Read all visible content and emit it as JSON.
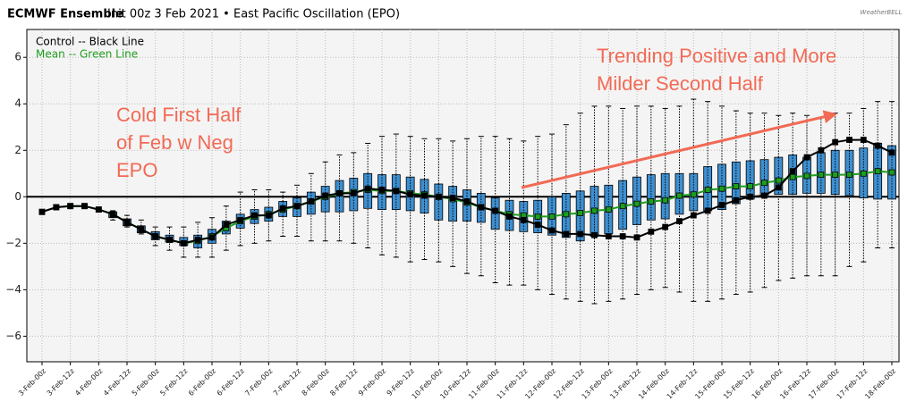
{
  "chart_data": {
    "type": "ensemble_box",
    "title": "ECMWF Ensemble",
    "subtitle": "Init 00z 3 Feb 2021 • East Pacific Oscillation (EPO)",
    "logo": "WeatherBELL",
    "annotations": [
      {
        "lines": [
          "Cold First Half",
          "of Feb w Neg",
          "EPO"
        ],
        "color": "#f26a55"
      },
      {
        "lines": [
          "Trending Positive and More",
          "Milder Second Half"
        ],
        "color": "#f26a55"
      }
    ],
    "categories": [
      "3-Feb-00z",
      null,
      "3-Feb-12z",
      null,
      "4-Feb-00z",
      null,
      "4-Feb-12z",
      null,
      "5-Feb-00z",
      null,
      "5-Feb-12z",
      null,
      "6-Feb-00z",
      null,
      "6-Feb-12z",
      null,
      "7-Feb-00z",
      null,
      "7-Feb-12z",
      null,
      "8-Feb-00z",
      null,
      "8-Feb-12z",
      null,
      "9-Feb-00z",
      null,
      "9-Feb-12z",
      null,
      "10-Feb-00z",
      null,
      "10-Feb-12z",
      null,
      "11-Feb-00z",
      null,
      "11-Feb-12z",
      null,
      "12-Feb-00z",
      null,
      "12-Feb-12z",
      null,
      "13-Feb-00z",
      null,
      "13-Feb-12z",
      null,
      "14-Feb-00z",
      null,
      "14-Feb-12z",
      null,
      "15-Feb-00z",
      null,
      "15-Feb-12z",
      null,
      "16-Feb-00z",
      null,
      "16-Feb-12z",
      null,
      "17-Feb-00z",
      null,
      "17-Feb-12z",
      null,
      "18-Feb-00z"
    ],
    "series": [
      {
        "name": "Control -- Black Line",
        "color": "#000000",
        "values": [
          -0.65,
          -0.45,
          -0.4,
          -0.4,
          -0.55,
          -0.75,
          -1.1,
          -1.4,
          -1.7,
          -1.85,
          -2.0,
          -1.85,
          -1.75,
          -1.2,
          -1.0,
          -0.8,
          -0.8,
          -0.5,
          -0.4,
          -0.2,
          0.05,
          0.15,
          0.15,
          0.35,
          0.3,
          0.25,
          0.1,
          0.05,
          0.0,
          -0.05,
          -0.2,
          -0.45,
          -0.6,
          -0.85,
          -1.0,
          -1.2,
          -1.45,
          -1.6,
          -1.6,
          -1.65,
          -1.7,
          -1.7,
          -1.75,
          -1.5,
          -1.3,
          -1.05,
          -0.8,
          -0.6,
          -0.35,
          -0.15,
          0.0,
          0.05,
          0.4,
          1.1,
          1.7,
          2.0,
          2.35,
          2.45,
          2.45,
          2.2,
          1.9
        ]
      },
      {
        "name": "Mean -- Green Line",
        "color": "#1f9e1f",
        "values": [
          -0.65,
          -0.45,
          -0.4,
          -0.4,
          -0.55,
          -0.75,
          -1.1,
          -1.4,
          -1.7,
          -1.85,
          -2.0,
          -1.9,
          -1.7,
          -1.35,
          -1.05,
          -0.85,
          -0.75,
          -0.55,
          -0.4,
          -0.2,
          0.0,
          0.15,
          0.2,
          0.3,
          0.25,
          0.25,
          0.15,
          0.1,
          0.0,
          -0.1,
          -0.25,
          -0.45,
          -0.6,
          -0.75,
          -0.8,
          -0.85,
          -0.85,
          -0.75,
          -0.7,
          -0.6,
          -0.55,
          -0.4,
          -0.3,
          -0.2,
          -0.15,
          0.05,
          0.1,
          0.3,
          0.35,
          0.45,
          0.45,
          0.6,
          0.7,
          0.85,
          0.9,
          0.95,
          0.95,
          0.95,
          1.0,
          1.1,
          1.05
        ]
      }
    ],
    "boxes": {
      "color": "#3d8fd1",
      "q1": [
        null,
        null,
        null,
        null,
        null,
        -0.9,
        -1.25,
        -1.55,
        -1.85,
        -1.95,
        -2.1,
        -2.2,
        -2.0,
        -1.6,
        -1.35,
        -1.15,
        -1.05,
        -0.85,
        -0.85,
        -0.75,
        -0.65,
        -0.65,
        -0.6,
        -0.5,
        -0.55,
        -0.55,
        -0.6,
        -0.7,
        -1.0,
        -1.05,
        -1.05,
        -1.1,
        -1.4,
        -1.45,
        -1.5,
        -1.55,
        -1.65,
        -1.75,
        -1.9,
        -1.7,
        -1.6,
        -1.4,
        -1.2,
        -1.0,
        -0.95,
        -0.75,
        -0.6,
        -0.6,
        -0.55,
        -0.3,
        -0.1,
        0.0,
        0.1,
        0.1,
        0.15,
        0.15,
        0.1,
        0.05,
        -0.05,
        -0.1,
        -0.1
      ],
      "q3": [
        null,
        null,
        null,
        null,
        null,
        -0.65,
        -0.95,
        -1.25,
        -1.5,
        -1.65,
        -1.75,
        -1.65,
        -1.4,
        -1.05,
        -0.75,
        -0.55,
        -0.45,
        -0.2,
        -0.05,
        0.2,
        0.45,
        0.7,
        0.8,
        1.0,
        0.95,
        0.95,
        0.85,
        0.75,
        0.55,
        0.45,
        0.3,
        0.15,
        -0.05,
        -0.15,
        -0.2,
        -0.15,
        0.0,
        0.15,
        0.25,
        0.45,
        0.5,
        0.7,
        0.85,
        0.95,
        1.0,
        1.0,
        1.0,
        1.3,
        1.4,
        1.5,
        1.55,
        1.6,
        1.7,
        1.8,
        1.7,
        1.9,
        2.0,
        2.0,
        2.1,
        2.3,
        2.2
      ],
      "min": [
        null,
        null,
        null,
        null,
        null,
        -1.0,
        -1.3,
        -1.6,
        -2.1,
        -2.3,
        -2.6,
        -2.6,
        -2.6,
        -2.3,
        -2.1,
        -2.0,
        -1.9,
        -1.7,
        -1.7,
        -1.9,
        -1.9,
        -1.9,
        -2.0,
        -2.2,
        -2.5,
        -2.6,
        -2.8,
        -2.7,
        -2.8,
        -3.0,
        -3.3,
        -3.4,
        -3.7,
        -3.8,
        -3.8,
        -4.0,
        -4.2,
        -4.4,
        -4.5,
        -4.6,
        -4.5,
        -4.4,
        -4.2,
        -4.0,
        -3.9,
        -4.1,
        -4.5,
        -4.5,
        -4.4,
        -4.2,
        -4.1,
        -3.9,
        -3.6,
        -3.5,
        -3.4,
        -3.4,
        -3.4,
        -3.0,
        -2.8,
        -2.2,
        -2.2
      ],
      "max": [
        null,
        null,
        null,
        null,
        null,
        -0.6,
        -0.8,
        -1.0,
        -1.3,
        -1.3,
        -1.3,
        -1.1,
        -0.9,
        -0.4,
        0.2,
        0.3,
        0.3,
        0.2,
        0.5,
        1.0,
        1.5,
        1.8,
        1.9,
        2.3,
        2.6,
        2.7,
        2.6,
        2.5,
        2.5,
        2.4,
        2.5,
        2.6,
        2.6,
        2.5,
        2.4,
        2.6,
        2.7,
        3.1,
        3.6,
        3.9,
        3.9,
        3.8,
        3.9,
        3.9,
        3.8,
        3.9,
        4.2,
        4.1,
        3.9,
        3.7,
        3.6,
        3.6,
        3.5,
        3.6,
        3.5,
        3.4,
        3.6,
        3.6,
        3.8,
        4.1,
        4.1
      ]
    },
    "ylim": [
      -7.1,
      7.2
    ],
    "yticks": [
      {
        "value": -6,
        "label": "−6"
      },
      {
        "value": -4,
        "label": "−4"
      },
      {
        "value": -2,
        "label": "−2"
      },
      0,
      2,
      4,
      6
    ],
    "reference_line": 0,
    "grid": true
  }
}
